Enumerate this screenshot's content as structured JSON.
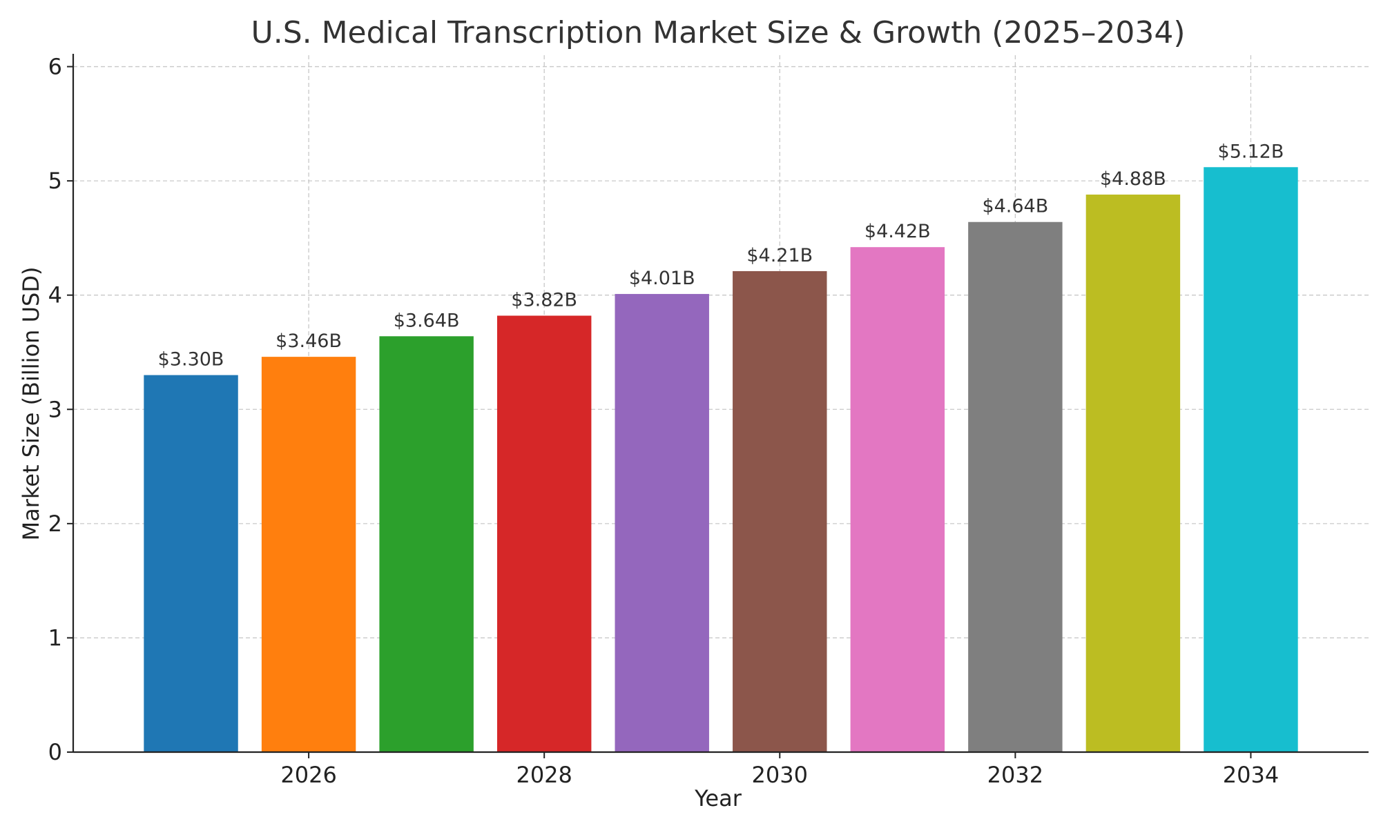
{
  "chart_data": {
    "type": "bar",
    "title": "U.S. Medical Transcription Market Size & Growth (2025–2034)",
    "xlabel": "Year",
    "ylabel": "Market Size (Billion USD)",
    "categories": [
      2025,
      2026,
      2027,
      2028,
      2029,
      2030,
      2031,
      2032,
      2033,
      2034
    ],
    "values": [
      3.3,
      3.46,
      3.64,
      3.82,
      4.01,
      4.21,
      4.42,
      4.64,
      4.88,
      5.12
    ],
    "data_labels": [
      "$3.30B",
      "$3.46B",
      "$3.64B",
      "$3.82B",
      "$4.01B",
      "$4.21B",
      "$4.42B",
      "$4.64B",
      "$4.88B",
      "$5.12B"
    ],
    "colors": [
      "#1f77b4",
      "#ff7f0e",
      "#2ca02c",
      "#d62728",
      "#9467bd",
      "#8c564b",
      "#e377c2",
      "#7f7f7f",
      "#bcbd22",
      "#17becf"
    ],
    "ylim": [
      0,
      6.1
    ],
    "yticks": [
      0,
      1,
      2,
      3,
      4,
      5,
      6
    ],
    "xticks": [
      2026,
      2028,
      2030,
      2032,
      2034
    ],
    "xlim": [
      2024.0,
      2035.0
    ],
    "grid": true,
    "grid_style": "dashed",
    "legend": "none"
  }
}
